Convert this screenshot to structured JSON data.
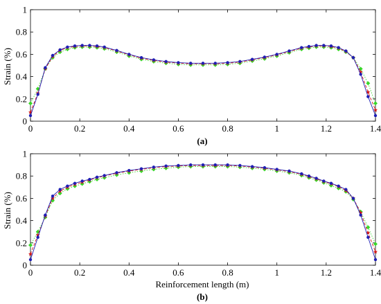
{
  "colors": {
    "series_blue": "#1f1fb4",
    "series_red": "#d21414",
    "series_green": "#39d62a",
    "axis": "#000000"
  },
  "chart_data": [
    {
      "type": "line",
      "caption": "(a)",
      "xlabel": "",
      "ylabel": "Strain (%)",
      "xlim": [
        0,
        1.4
      ],
      "ylim": [
        0,
        1
      ],
      "xticks": [
        0,
        0.2,
        0.4,
        0.6,
        0.8,
        1,
        1.2,
        1.4
      ],
      "xtick_labels": [
        "0",
        "0.2",
        "0.4",
        "0.6",
        "0.8",
        "1",
        "1.2",
        "1.4"
      ],
      "yticks": [
        0,
        0.2,
        0.4,
        0.6,
        0.8,
        1
      ],
      "ytick_labels": [
        "0",
        "0.2",
        "0.4",
        "0.6",
        "0.8",
        "1"
      ],
      "grid": false,
      "x": [
        0,
        0.03,
        0.06,
        0.09,
        0.12,
        0.15,
        0.18,
        0.21,
        0.24,
        0.27,
        0.3,
        0.35,
        0.4,
        0.45,
        0.5,
        0.55,
        0.6,
        0.65,
        0.7,
        0.75,
        0.8,
        0.85,
        0.9,
        0.95,
        1,
        1.05,
        1.1,
        1.13,
        1.16,
        1.19,
        1.22,
        1.25,
        1.28,
        1.31,
        1.34,
        1.37,
        1.4
      ],
      "series": [
        {
          "color": "#1f1fb4",
          "marker": "dot",
          "dash": "solid",
          "values": [
            0.05,
            0.24,
            0.48,
            0.59,
            0.64,
            0.665,
            0.675,
            0.68,
            0.68,
            0.675,
            0.665,
            0.635,
            0.6,
            0.57,
            0.55,
            0.535,
            0.525,
            0.52,
            0.52,
            0.52,
            0.525,
            0.535,
            0.555,
            0.575,
            0.6,
            0.63,
            0.66,
            0.67,
            0.68,
            0.68,
            0.675,
            0.66,
            0.63,
            0.57,
            0.42,
            0.22,
            0.05
          ]
        },
        {
          "color": "#d21414",
          "marker": "star",
          "dash": "dashed",
          "values": [
            0.08,
            0.25,
            0.47,
            0.58,
            0.635,
            0.66,
            0.67,
            0.675,
            0.675,
            0.67,
            0.66,
            0.63,
            0.595,
            0.565,
            0.545,
            0.53,
            0.52,
            0.515,
            0.515,
            0.515,
            0.52,
            0.53,
            0.55,
            0.57,
            0.595,
            0.625,
            0.655,
            0.665,
            0.675,
            0.675,
            0.67,
            0.655,
            0.625,
            0.57,
            0.44,
            0.26,
            0.1
          ]
        },
        {
          "color": "#39d62a",
          "marker": "diamond",
          "dash": "dotted",
          "values": [
            0.16,
            0.29,
            0.47,
            0.57,
            0.62,
            0.645,
            0.66,
            0.665,
            0.665,
            0.66,
            0.65,
            0.62,
            0.585,
            0.555,
            0.535,
            0.52,
            0.51,
            0.505,
            0.505,
            0.505,
            0.51,
            0.52,
            0.54,
            0.56,
            0.585,
            0.615,
            0.645,
            0.655,
            0.665,
            0.665,
            0.66,
            0.645,
            0.62,
            0.57,
            0.47,
            0.34,
            0.16
          ]
        }
      ]
    },
    {
      "type": "line",
      "caption": "(b)",
      "xlabel": "Reinforcement length (m)",
      "ylabel": "Strain (%)",
      "xlim": [
        0,
        1.4
      ],
      "ylim": [
        0,
        1
      ],
      "xticks": [
        0,
        0.2,
        0.4,
        0.6,
        0.8,
        1,
        1.2,
        1.4
      ],
      "xtick_labels": [
        "0",
        "0.2",
        "0.4",
        "0.6",
        "0.8",
        "1",
        "1.2",
        "1.4"
      ],
      "yticks": [
        0,
        0.2,
        0.4,
        0.6,
        0.8,
        1
      ],
      "ytick_labels": [
        "0",
        "0.2",
        "0.4",
        "0.6",
        "0.8",
        "1"
      ],
      "grid": false,
      "x": [
        0,
        0.03,
        0.06,
        0.09,
        0.12,
        0.15,
        0.18,
        0.21,
        0.24,
        0.27,
        0.3,
        0.35,
        0.4,
        0.45,
        0.5,
        0.55,
        0.6,
        0.65,
        0.7,
        0.75,
        0.8,
        0.85,
        0.9,
        0.95,
        1,
        1.05,
        1.1,
        1.13,
        1.16,
        1.19,
        1.22,
        1.25,
        1.28,
        1.31,
        1.34,
        1.37,
        1.4
      ],
      "series": [
        {
          "color": "#1f1fb4",
          "marker": "dot",
          "dash": "solid",
          "values": [
            0.05,
            0.25,
            0.45,
            0.62,
            0.68,
            0.71,
            0.735,
            0.755,
            0.77,
            0.79,
            0.805,
            0.83,
            0.85,
            0.865,
            0.88,
            0.89,
            0.895,
            0.9,
            0.9,
            0.9,
            0.9,
            0.895,
            0.885,
            0.875,
            0.86,
            0.845,
            0.82,
            0.8,
            0.78,
            0.755,
            0.735,
            0.71,
            0.68,
            0.6,
            0.45,
            0.25,
            0.05
          ]
        },
        {
          "color": "#d21414",
          "marker": "star",
          "dash": "dashed",
          "values": [
            0.1,
            0.27,
            0.44,
            0.6,
            0.665,
            0.7,
            0.725,
            0.745,
            0.765,
            0.785,
            0.8,
            0.825,
            0.845,
            0.86,
            0.875,
            0.885,
            0.89,
            0.895,
            0.895,
            0.895,
            0.895,
            0.89,
            0.88,
            0.87,
            0.855,
            0.84,
            0.815,
            0.795,
            0.775,
            0.75,
            0.73,
            0.705,
            0.67,
            0.6,
            0.47,
            0.29,
            0.12
          ]
        },
        {
          "color": "#39d62a",
          "marker": "diamond",
          "dash": "dotted",
          "values": [
            0.18,
            0.3,
            0.43,
            0.58,
            0.645,
            0.685,
            0.71,
            0.73,
            0.75,
            0.77,
            0.785,
            0.81,
            0.83,
            0.845,
            0.86,
            0.87,
            0.88,
            0.885,
            0.885,
            0.885,
            0.885,
            0.88,
            0.87,
            0.86,
            0.845,
            0.83,
            0.805,
            0.785,
            0.765,
            0.74,
            0.715,
            0.69,
            0.66,
            0.59,
            0.48,
            0.34,
            0.19
          ]
        }
      ]
    }
  ]
}
